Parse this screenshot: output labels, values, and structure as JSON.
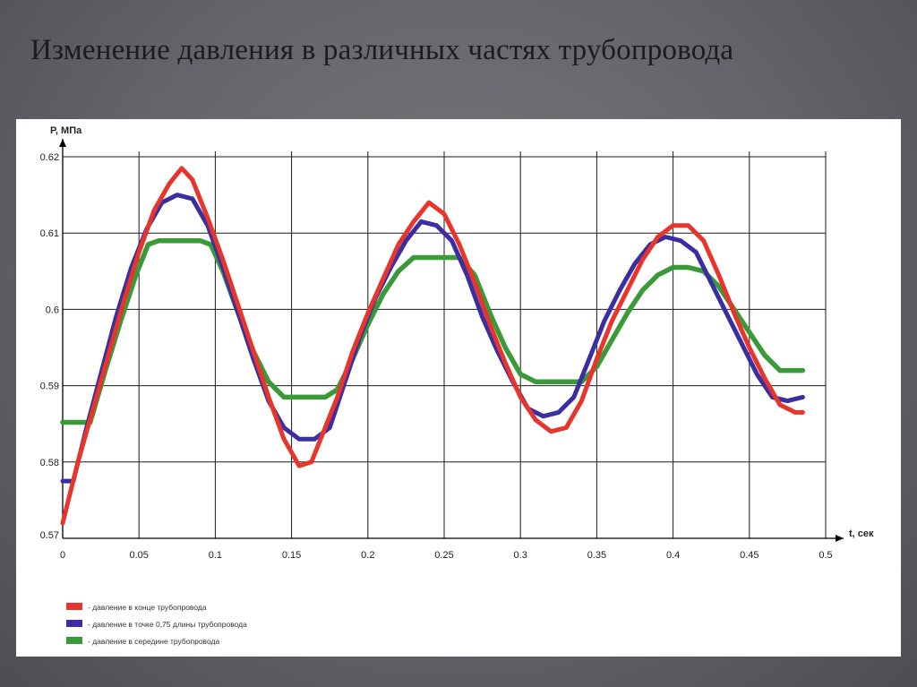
{
  "slide": {
    "title": "Изменение давления в различных частях трубопровода"
  },
  "chart_data": {
    "type": "line",
    "title": "",
    "xlabel": "t, сек",
    "ylabel": "P, МПа",
    "xlim": [
      0,
      0.5
    ],
    "ylim": [
      0.57,
      0.62
    ],
    "x_ticks": [
      0,
      0.05,
      0.1,
      0.15,
      0.2,
      0.25,
      0.3,
      0.35,
      0.4,
      0.45,
      0.5
    ],
    "x_tick_labels": [
      "0",
      "0.05",
      "0.1",
      "0.15",
      "0.2",
      "0.25",
      "0.3",
      "0.35",
      "0.4",
      "0.45",
      "0.5"
    ],
    "y_ticks": [
      0.57,
      0.58,
      0.59,
      0.6,
      0.61,
      0.62
    ],
    "y_tick_labels": [
      "0.57",
      "0.58",
      "0.59",
      "0.6",
      "0.61",
      "0.62"
    ],
    "grid": true,
    "legend_position": "bottom-left",
    "series": [
      {
        "name": "- давление в конце трубопровода",
        "color": "#e8352c",
        "points": [
          [
            0,
            0.572
          ],
          [
            0.01,
            0.58
          ],
          [
            0.02,
            0.587
          ],
          [
            0.03,
            0.594
          ],
          [
            0.04,
            0.601
          ],
          [
            0.05,
            0.6075
          ],
          [
            0.06,
            0.613
          ],
          [
            0.07,
            0.6165
          ],
          [
            0.078,
            0.6185
          ],
          [
            0.085,
            0.617
          ],
          [
            0.095,
            0.612
          ],
          [
            0.105,
            0.6065
          ],
          [
            0.115,
            0.6005
          ],
          [
            0.125,
            0.5945
          ],
          [
            0.135,
            0.5885
          ],
          [
            0.145,
            0.583
          ],
          [
            0.155,
            0.5795
          ],
          [
            0.163,
            0.58
          ],
          [
            0.17,
            0.5835
          ],
          [
            0.18,
            0.5885
          ],
          [
            0.19,
            0.5945
          ],
          [
            0.2,
            0.5995
          ],
          [
            0.21,
            0.604
          ],
          [
            0.22,
            0.6085
          ],
          [
            0.23,
            0.6115
          ],
          [
            0.24,
            0.614
          ],
          [
            0.25,
            0.6125
          ],
          [
            0.26,
            0.6085
          ],
          [
            0.27,
            0.6035
          ],
          [
            0.28,
            0.598
          ],
          [
            0.29,
            0.593
          ],
          [
            0.3,
            0.5885
          ],
          [
            0.31,
            0.5855
          ],
          [
            0.32,
            0.584
          ],
          [
            0.33,
            0.5845
          ],
          [
            0.34,
            0.588
          ],
          [
            0.35,
            0.5935
          ],
          [
            0.36,
            0.5985
          ],
          [
            0.37,
            0.6025
          ],
          [
            0.38,
            0.6065
          ],
          [
            0.39,
            0.6095
          ],
          [
            0.4,
            0.611
          ],
          [
            0.41,
            0.611
          ],
          [
            0.42,
            0.609
          ],
          [
            0.43,
            0.6045
          ],
          [
            0.44,
            0.5995
          ],
          [
            0.45,
            0.595
          ],
          [
            0.46,
            0.591
          ],
          [
            0.47,
            0.5875
          ],
          [
            0.48,
            0.5865
          ],
          [
            0.485,
            0.5865
          ]
        ]
      },
      {
        "name": "- давление в точке 0,75 длины трубопровода",
        "color": "#3a2ea3",
        "points": [
          [
            0,
            0.5775
          ],
          [
            0.007,
            0.5775
          ],
          [
            0.015,
            0.584
          ],
          [
            0.025,
            0.5915
          ],
          [
            0.035,
            0.599
          ],
          [
            0.045,
            0.6055
          ],
          [
            0.055,
            0.6105
          ],
          [
            0.065,
            0.614
          ],
          [
            0.075,
            0.615
          ],
          [
            0.085,
            0.6145
          ],
          [
            0.095,
            0.611
          ],
          [
            0.105,
            0.6055
          ],
          [
            0.115,
            0.5995
          ],
          [
            0.125,
            0.5935
          ],
          [
            0.135,
            0.588
          ],
          [
            0.145,
            0.5845
          ],
          [
            0.155,
            0.583
          ],
          [
            0.165,
            0.583
          ],
          [
            0.175,
            0.5845
          ],
          [
            0.185,
            0.5905
          ],
          [
            0.195,
            0.5965
          ],
          [
            0.205,
            0.6015
          ],
          [
            0.215,
            0.6055
          ],
          [
            0.225,
            0.609
          ],
          [
            0.235,
            0.6115
          ],
          [
            0.245,
            0.611
          ],
          [
            0.255,
            0.609
          ],
          [
            0.265,
            0.6045
          ],
          [
            0.275,
            0.599
          ],
          [
            0.285,
            0.5945
          ],
          [
            0.295,
            0.5905
          ],
          [
            0.305,
            0.587
          ],
          [
            0.315,
            0.586
          ],
          [
            0.325,
            0.5865
          ],
          [
            0.335,
            0.5885
          ],
          [
            0.345,
            0.5935
          ],
          [
            0.355,
            0.5985
          ],
          [
            0.365,
            0.6025
          ],
          [
            0.375,
            0.606
          ],
          [
            0.385,
            0.6085
          ],
          [
            0.395,
            0.6095
          ],
          [
            0.405,
            0.609
          ],
          [
            0.415,
            0.6075
          ],
          [
            0.425,
            0.6035
          ],
          [
            0.435,
            0.5995
          ],
          [
            0.445,
            0.5955
          ],
          [
            0.455,
            0.5915
          ],
          [
            0.465,
            0.5885
          ],
          [
            0.475,
            0.588
          ],
          [
            0.485,
            0.5885
          ]
        ]
      },
      {
        "name": "- давление в середине трубопровода",
        "color": "#3a9a3a",
        "points": [
          [
            0,
            0.5852
          ],
          [
            0.018,
            0.5852
          ],
          [
            0.028,
            0.592
          ],
          [
            0.038,
            0.5985
          ],
          [
            0.048,
            0.6045
          ],
          [
            0.056,
            0.6085
          ],
          [
            0.063,
            0.609
          ],
          [
            0.08,
            0.609
          ],
          [
            0.09,
            0.609
          ],
          [
            0.097,
            0.6085
          ],
          [
            0.105,
            0.605
          ],
          [
            0.115,
            0.5995
          ],
          [
            0.125,
            0.5945
          ],
          [
            0.135,
            0.5905
          ],
          [
            0.145,
            0.5885
          ],
          [
            0.16,
            0.5885
          ],
          [
            0.172,
            0.5885
          ],
          [
            0.18,
            0.5895
          ],
          [
            0.19,
            0.5935
          ],
          [
            0.2,
            0.598
          ],
          [
            0.21,
            0.602
          ],
          [
            0.22,
            0.605
          ],
          [
            0.23,
            0.6068
          ],
          [
            0.245,
            0.6068
          ],
          [
            0.26,
            0.6068
          ],
          [
            0.27,
            0.6045
          ],
          [
            0.28,
            0.5995
          ],
          [
            0.29,
            0.595
          ],
          [
            0.3,
            0.5915
          ],
          [
            0.31,
            0.5905
          ],
          [
            0.325,
            0.5905
          ],
          [
            0.34,
            0.5905
          ],
          [
            0.35,
            0.5925
          ],
          [
            0.36,
            0.596
          ],
          [
            0.37,
            0.5995
          ],
          [
            0.38,
            0.6025
          ],
          [
            0.39,
            0.6045
          ],
          [
            0.4,
            0.6055
          ],
          [
            0.41,
            0.6055
          ],
          [
            0.42,
            0.605
          ],
          [
            0.43,
            0.603
          ],
          [
            0.44,
            0.6
          ],
          [
            0.45,
            0.597
          ],
          [
            0.46,
            0.594
          ],
          [
            0.47,
            0.592
          ],
          [
            0.48,
            0.592
          ],
          [
            0.485,
            0.592
          ]
        ]
      }
    ]
  }
}
